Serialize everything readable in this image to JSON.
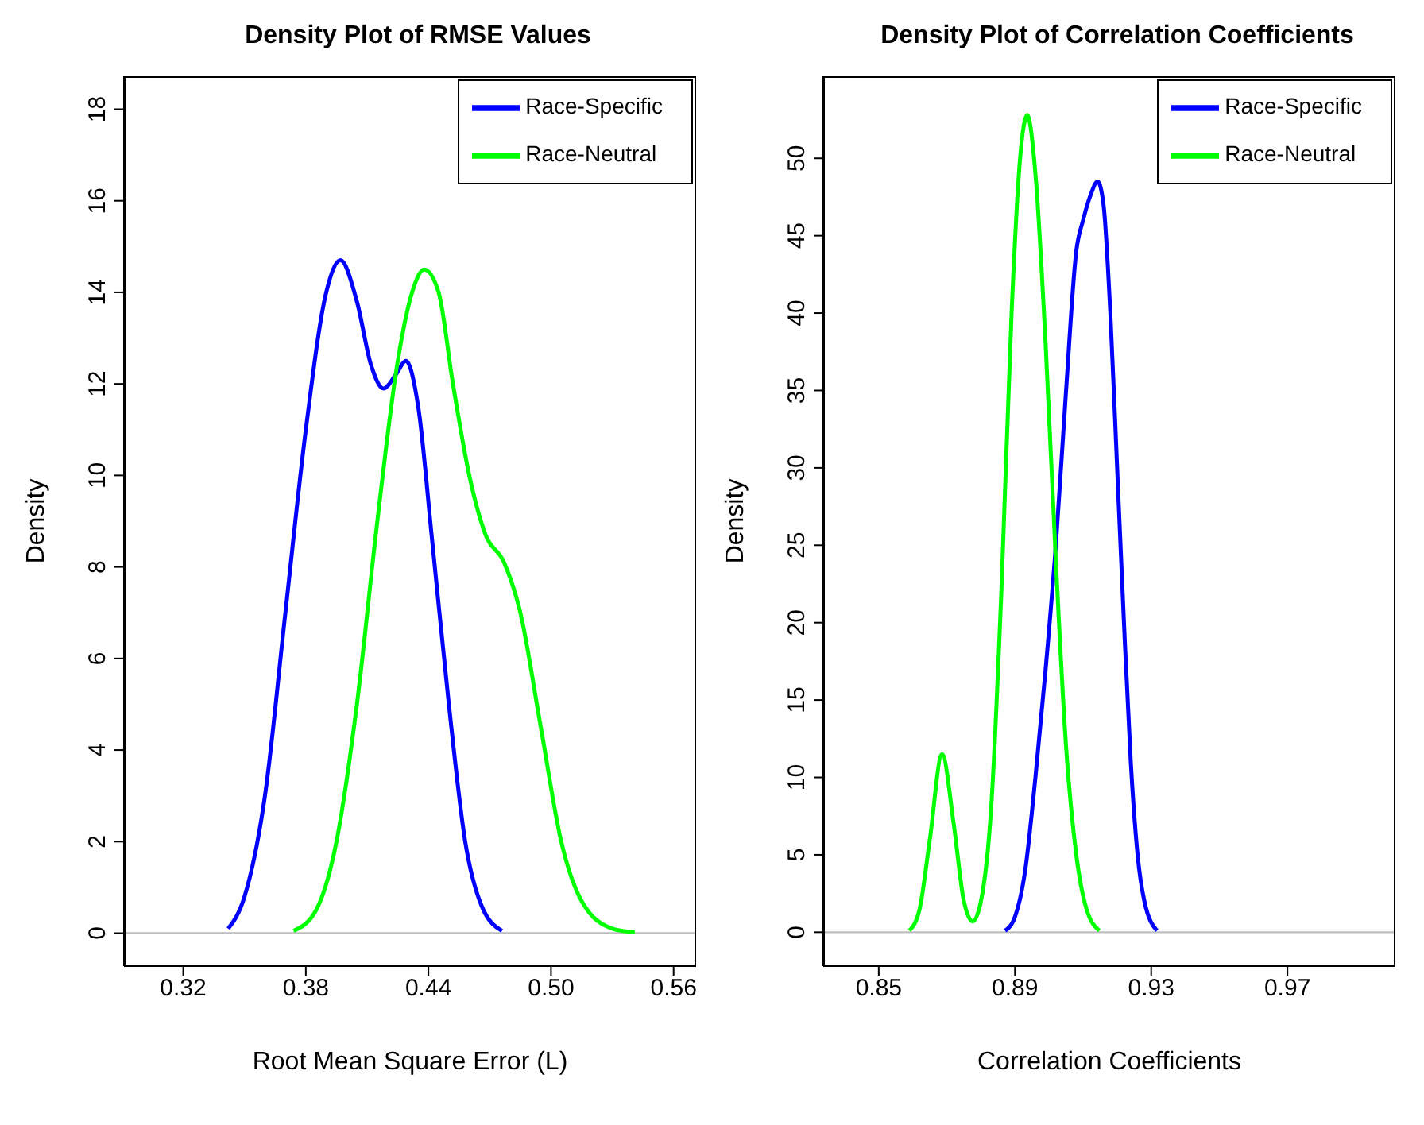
{
  "chart_data": [
    {
      "type": "line",
      "title": "Density Plot of RMSE Values",
      "xlabel": "Root Mean Square Error (L)",
      "ylabel": "Density",
      "xlim": [
        0.291,
        0.571
      ],
      "xticks": [
        0.32,
        0.38,
        0.44,
        {
          "value": 0.5,
          "label": "0.50"
        },
        0.56
      ],
      "ylim": [
        -0.72,
        18.72
      ],
      "yticks": [
        0,
        2,
        4,
        6,
        8,
        10,
        12,
        14,
        16,
        18
      ],
      "legend": "top right",
      "grid": false,
      "marker": "none",
      "line_style": "solid",
      "ref_lines": [
        {
          "axis": "y",
          "value": 0,
          "label": null,
          "color": "#bebebe"
        }
      ],
      "series": [
        {
          "name": "Race-Specific",
          "color": "#0000ff",
          "x": [
            0.342,
            0.35,
            0.36,
            0.37,
            0.38,
            0.39,
            0.397,
            0.405,
            0.412,
            0.418,
            0.424,
            0.429,
            0.435,
            0.442,
            0.45,
            0.458,
            0.466,
            0.476
          ],
          "values": [
            0.1,
            0.8,
            3,
            7,
            11,
            14,
            14.7,
            13.8,
            12.4,
            11.9,
            12.2,
            12.5,
            11.5,
            8.5,
            5,
            2,
            0.6,
            0.05
          ]
        },
        {
          "name": "Race-Neutral",
          "color": "#00ff00",
          "x": [
            0.374,
            0.385,
            0.395,
            0.405,
            0.415,
            0.425,
            0.432,
            0.438,
            0.445,
            0.452,
            0.46,
            0.468,
            0.477,
            0.485,
            0.495,
            0.505,
            0.515,
            0.53,
            0.541
          ],
          "values": [
            0.05,
            0.5,
            2,
            5,
            9,
            12.5,
            14,
            14.5,
            14,
            12,
            10,
            8.7,
            8.1,
            7,
            4.5,
            2,
            0.7,
            0.1,
            0.02
          ]
        }
      ]
    },
    {
      "type": "line",
      "title": "Density Plot of Correlation Coefficients",
      "xlabel": "Correlation Coefficients",
      "ylabel": "Density",
      "xlim": [
        0.8337,
        1.0017
      ],
      "xticks": [
        0.85,
        0.89,
        0.93,
        0.97
      ],
      "ylim": [
        -2.19,
        55.3
      ],
      "yticks": [
        0,
        5,
        10,
        15,
        20,
        25,
        30,
        35,
        40,
        45,
        50
      ],
      "legend": "top right",
      "grid": false,
      "marker": "none",
      "line_style": "solid",
      "ref_lines": [
        {
          "axis": "y",
          "value": 0,
          "label": null,
          "color": "#bebebe"
        }
      ],
      "series": [
        {
          "name": "Race-Specific",
          "color": "#0000ff",
          "x": [
            0.8871,
            0.89,
            0.893,
            0.896,
            0.899,
            0.902,
            0.905,
            0.908,
            0.91,
            0.912,
            0.9143,
            0.916,
            0.918,
            0.92,
            0.922,
            0.924,
            0.926,
            0.928,
            0.9317
          ],
          "values": [
            0.1,
            1,
            4,
            10,
            17,
            25,
            35,
            44,
            46,
            47.5,
            48.5,
            47,
            40,
            30,
            20,
            11,
            5,
            2,
            0.1
          ]
        },
        {
          "name": "Race-Neutral",
          "color": "#00ff00",
          "x": [
            0.859,
            0.862,
            0.865,
            0.8686,
            0.872,
            0.875,
            0.8776,
            0.88,
            0.883,
            0.886,
            0.889,
            0.8915,
            0.8936,
            0.896,
            0.899,
            0.902,
            0.905,
            0.908,
            0.911,
            0.9148
          ],
          "values": [
            0.1,
            1.5,
            6,
            11.5,
            7,
            2,
            0.7,
            2,
            8,
            22,
            40,
            50,
            52.8,
            49,
            38,
            24,
            12,
            5,
            1.5,
            0.1
          ]
        }
      ]
    }
  ]
}
